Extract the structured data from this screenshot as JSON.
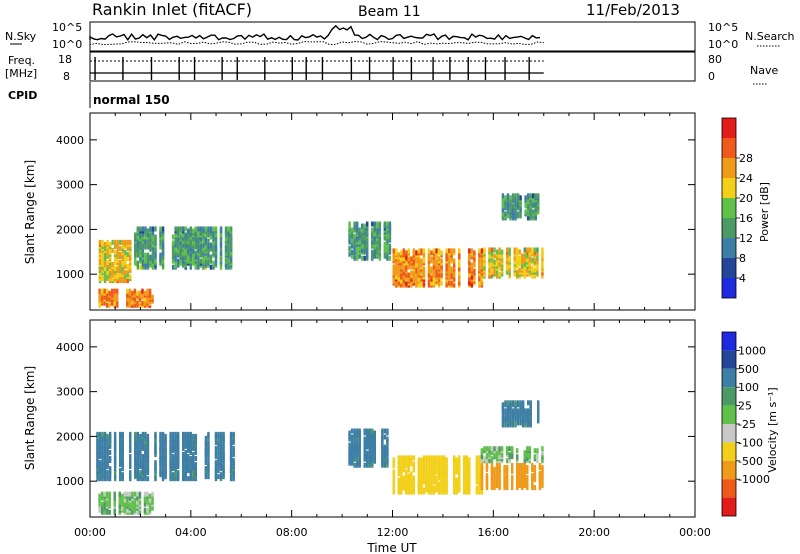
{
  "header": {
    "station": "Rankin Inlet (fitACF)",
    "beam": "Beam 11",
    "date": "11/Feb/2013"
  },
  "noise_panel": {
    "left_label": "N.Sky",
    "right_label": "N.Search",
    "left_ticks": [
      "10^5",
      "10^0"
    ],
    "right_ticks": [
      "10^5",
      "10^0"
    ]
  },
  "freq_panel": {
    "left_label_line1": "Freq.",
    "left_label_line2": "[MHz]",
    "right_label": "Nave",
    "left_ticks": [
      "18",
      "8"
    ],
    "right_ticks": [
      "80",
      "0"
    ]
  },
  "cpid": {
    "label": "CPID",
    "mode": "normal 150"
  },
  "colors": {
    "power_scale": [
      "#1e2adf",
      "#24469a",
      "#3d7ea4",
      "#4c9a63",
      "#5fc14a",
      "#f2d01a",
      "#f09a1a",
      "#ef5a1a",
      "#e21b1b"
    ],
    "velocity_scale": [
      "#1e2adf",
      "#24469a",
      "#3d7ea4",
      "#4c9a63",
      "#5fc14a",
      "#c8c8c8",
      "#f2d01a",
      "#f09a1a",
      "#ef5a1a",
      "#e21b1b"
    ]
  },
  "chart_data": [
    {
      "type": "heatmap",
      "quantity": "Power",
      "ylabel": "Slant Range [km]",
      "y_ticks": [
        1000,
        2000,
        3000,
        4000
      ],
      "ylim": [
        200,
        4600
      ],
      "xlim": [
        "00:00",
        "24:00"
      ],
      "colorbar": {
        "label": "Power [dB]",
        "tick_labels": [
          "4",
          "8",
          "12",
          "16",
          "20",
          "24",
          "28"
        ],
        "range": [
          0,
          32
        ]
      },
      "grid": false,
      "echo_regions": [
        {
          "t_start": "00:15",
          "t_end": "01:45",
          "range_km": [
            800,
            1700
          ],
          "value": 20
        },
        {
          "t_start": "01:45",
          "t_end": "05:40",
          "range_km": [
            1100,
            2000
          ],
          "value": 12
        },
        {
          "t_start": "00:20",
          "t_end": "02:30",
          "range_km": [
            250,
            600
          ],
          "value": 24
        },
        {
          "t_start": "10:15",
          "t_end": "12:00",
          "range_km": [
            1300,
            2100
          ],
          "value": 12
        },
        {
          "t_start": "12:00",
          "t_end": "15:30",
          "range_km": [
            700,
            1500
          ],
          "value": 24
        },
        {
          "t_start": "15:30",
          "t_end": "18:00",
          "range_km": [
            900,
            1500
          ],
          "value": 20
        },
        {
          "t_start": "16:20",
          "t_end": "17:50",
          "range_km": [
            2200,
            2700
          ],
          "value": 12
        }
      ]
    },
    {
      "type": "heatmap",
      "quantity": "Velocity",
      "ylabel": "Slant Range [km]",
      "xlabel": "Time UT",
      "x_tick_labels": [
        "00:00",
        "04:00",
        "08:00",
        "12:00",
        "16:00",
        "20:00",
        "00:00"
      ],
      "y_ticks": [
        1000,
        2000,
        3000,
        4000
      ],
      "ylim": [
        200,
        4600
      ],
      "colorbar": {
        "label": "Velocity [m s⁻¹]",
        "tick_labels": [
          "1000",
          "500",
          "100",
          "25",
          "-25",
          "-100",
          "-500",
          "-1000"
        ]
      },
      "grid": false,
      "echo_regions": [
        {
          "t_start": "00:15",
          "t_end": "05:40",
          "range_km": [
            1000,
            2000
          ],
          "value": 150
        },
        {
          "t_start": "00:20",
          "t_end": "02:30",
          "range_km": [
            250,
            700
          ],
          "value": 0
        },
        {
          "t_start": "10:15",
          "t_end": "12:00",
          "range_km": [
            1300,
            2100
          ],
          "value": 150
        },
        {
          "t_start": "12:00",
          "t_end": "15:30",
          "range_km": [
            700,
            1500
          ],
          "value": -400
        },
        {
          "t_start": "15:30",
          "t_end": "18:00",
          "range_km": [
            1400,
            1700
          ],
          "value": 0
        },
        {
          "t_start": "15:30",
          "t_end": "18:00",
          "range_km": [
            800,
            1300
          ],
          "value": -600
        },
        {
          "t_start": "16:20",
          "t_end": "17:50",
          "range_km": [
            2200,
            2700
          ],
          "value": 150
        }
      ]
    }
  ]
}
